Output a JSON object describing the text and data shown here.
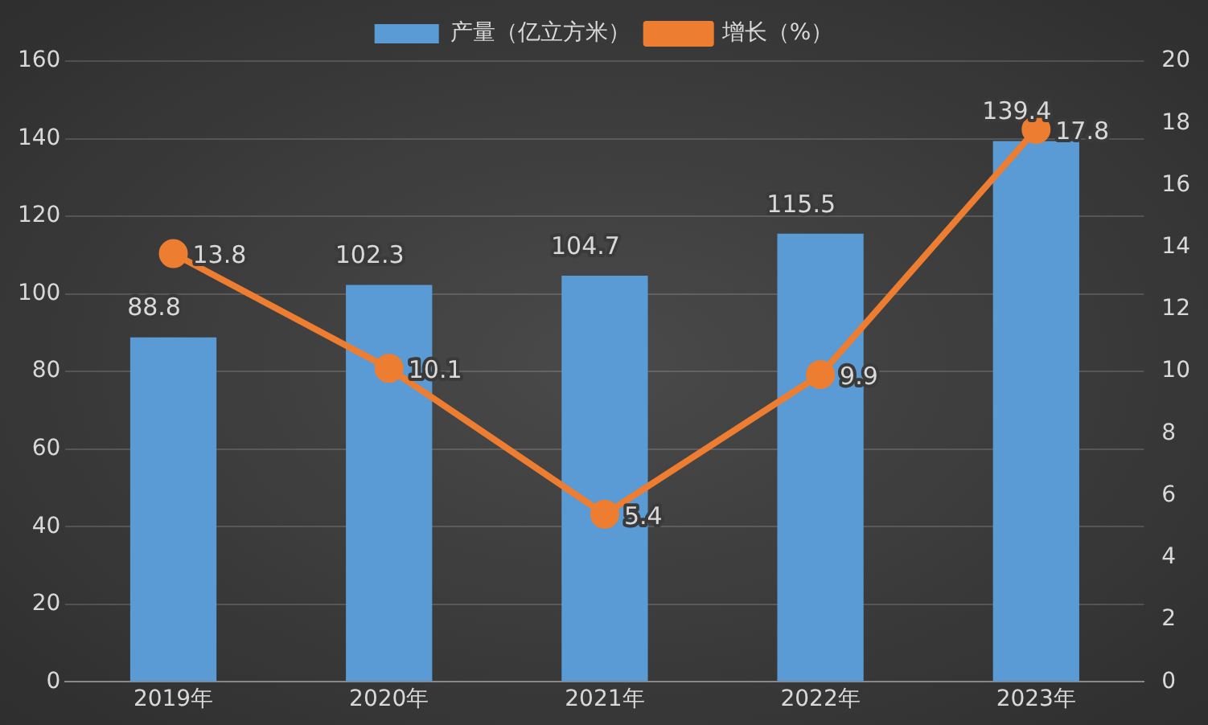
{
  "chart_data": {
    "type": "bar",
    "categories": [
      "2019年",
      "2020年",
      "2021年",
      "2022年",
      "2023年"
    ],
    "series": [
      {
        "name": "产量（亿立方米）",
        "color": "#5b9bd5",
        "values": [
          88.8,
          102.3,
          104.7,
          115.5,
          139.4
        ]
      },
      {
        "name": "增长（%）",
        "type": "line",
        "axis": "y2",
        "color": "#ed7d31",
        "values": [
          13.8,
          10.1,
          5.4,
          9.9,
          17.8
        ]
      }
    ],
    "ylim": [
      0,
      160
    ],
    "yticks": [
      0,
      20,
      40,
      60,
      80,
      100,
      120,
      140,
      160
    ],
    "y2lim": [
      0,
      20
    ],
    "y2ticks": [
      0,
      2,
      4,
      6,
      8,
      10,
      12,
      14,
      16,
      18,
      20
    ],
    "grid": "y",
    "legend": "top",
    "data_labels": true,
    "marker": "circle"
  }
}
